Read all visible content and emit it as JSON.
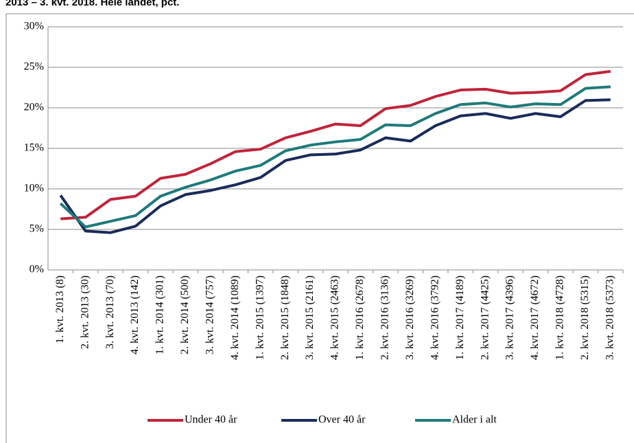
{
  "chart_data": {
    "type": "line",
    "title": "2013 – 3. kvt. 2018. Hele landet, pct.",
    "categories": [
      "1. kvt. 2013 (8)",
      "2. kvt. 2013 (30)",
      "3. kvt. 2013 (70)",
      "4. kvt. 2013 (142)",
      "1. kvt. 2014 (301)",
      "2. kvt. 2014 (500)",
      "3. kvt. 2014 (757)",
      "4. kvt. 2014 (1089)",
      "1. kvt. 2015 (1397)",
      "2. kvt. 2015 (1848)",
      "3. kvt. 2015 (2161)",
      "4. kvt. 2015 (2463)",
      "1. kvt. 2016 (2678)",
      "2. kvt. 2016 (3136)",
      "3. kvt. 2016 (3269)",
      "4. kvt. 2016 (3792)",
      "1. kvt. 2017 (4189)",
      "2. kvt. 2017 (4425)",
      "3. kvt. 2017 (4396)",
      "4. kvt. 2017 (4672)",
      "1. kvt. 2018 (4728)",
      "2. kvt. 2018 (5315)",
      "3. kvt. 2018 (5373)"
    ],
    "series": [
      {
        "name": "Under 40 år",
        "color": "#c0243a",
        "values": [
          6.3,
          6.5,
          8.7,
          9.1,
          11.3,
          11.8,
          13.1,
          14.6,
          14.9,
          16.3,
          17.1,
          18.0,
          17.8,
          19.9,
          20.3,
          21.4,
          22.2,
          22.3,
          21.8,
          21.9,
          22.1,
          24.1,
          24.5
        ]
      },
      {
        "name": "Over 40 år",
        "color": "#1a2b5a",
        "values": [
          9.2,
          4.8,
          4.6,
          5.4,
          7.9,
          9.3,
          9.8,
          10.5,
          11.4,
          13.5,
          14.2,
          14.3,
          14.8,
          16.3,
          15.9,
          17.8,
          19.0,
          19.3,
          18.7,
          19.3,
          18.9,
          20.9,
          21.0
        ]
      },
      {
        "name": "Alder i alt",
        "color": "#1f7a7a",
        "values": [
          8.2,
          5.3,
          6.0,
          6.7,
          9.1,
          10.2,
          11.1,
          12.2,
          12.9,
          14.7,
          15.4,
          15.8,
          16.1,
          17.9,
          17.8,
          19.3,
          20.4,
          20.6,
          20.1,
          20.5,
          20.4,
          22.4,
          22.6
        ]
      }
    ],
    "ylim": [
      0,
      30
    ],
    "yticks": [
      {
        "value": 0,
        "label": "0%"
      },
      {
        "value": 5,
        "label": "5%"
      },
      {
        "value": 10,
        "label": "10%"
      },
      {
        "value": 15,
        "label": "15%"
      },
      {
        "value": 20,
        "label": "20%"
      },
      {
        "value": 25,
        "label": "25%"
      },
      {
        "value": 30,
        "label": "30%"
      }
    ],
    "grid": true,
    "legend": "bottom"
  }
}
